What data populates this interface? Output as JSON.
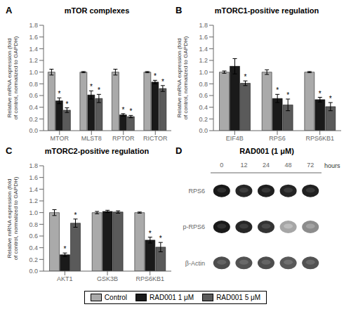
{
  "chart_data": [
    {
      "type": "bar",
      "title": "mTOR complexes",
      "annotations": [
        "A"
      ],
      "categories": [
        "MTOR",
        "MLST8",
        "RPTOR",
        "RICTOR"
      ],
      "ylabel": "Relative mRNA expression (fold\nof control, normalized to GAPDH)",
      "series": [
        {
          "name": "Control",
          "color": "#aaaaaa",
          "values": [
            1.0,
            1.0,
            1.0,
            1.0
          ],
          "errors": [
            0.05,
            0.01,
            0.05,
            0.01
          ]
        },
        {
          "name": "RAD001 1 μM",
          "color": "#1a1a1a",
          "values": [
            0.51,
            0.61,
            0.27,
            0.83
          ],
          "errors": [
            0.05,
            0.07,
            0.02,
            0.03
          ],
          "annotations": [
            "*",
            "*",
            "*",
            "*"
          ]
        },
        {
          "name": "RAD001 5 μM",
          "color": "#5a5a5a",
          "values": [
            0.35,
            0.55,
            0.24,
            0.72
          ],
          "errors": [
            0.04,
            0.07,
            0.02,
            0.05
          ],
          "annotations": [
            "*",
            "*",
            "*",
            "*"
          ]
        }
      ],
      "ylim": [
        0,
        1.8
      ],
      "yticks": [
        {
          "value": 0,
          "label": "0.0"
        },
        0.2,
        0.4,
        0.6,
        0.8,
        {
          "value": 1,
          "label": "1.0"
        },
        1.2,
        1.4,
        1.6,
        1.8
      ],
      "grid": false,
      "legend": "bottom"
    },
    {
      "type": "bar",
      "title": "mTORC1-positive regulation",
      "annotations": [
        "B"
      ],
      "categories": [
        "EIF4B",
        "RPS6",
        "RPS6KB1"
      ],
      "ylabel": "Relative mRNA expression (fold\nof control, normalized to GAPDH)",
      "series": [
        {
          "name": "Control",
          "color": "#aaaaaa",
          "values": [
            1.0,
            1.0,
            1.0
          ],
          "errors": [
            0.02,
            0.04,
            0.01
          ]
        },
        {
          "name": "RAD001 1 μM",
          "color": "#1a1a1a",
          "values": [
            1.1,
            0.55,
            0.53
          ],
          "errors": [
            0.13,
            0.07,
            0.04
          ],
          "annotations": [
            null,
            "*",
            "*"
          ]
        },
        {
          "name": "RAD001 5 μM",
          "color": "#5a5a5a",
          "values": [
            0.81,
            0.44,
            0.41
          ],
          "errors": [
            0.04,
            0.1,
            0.07
          ],
          "annotations": [
            "*",
            "*",
            "*"
          ]
        }
      ],
      "ylim": [
        0,
        1.8
      ],
      "yticks": [
        {
          "value": 0,
          "label": "0.0"
        },
        0.2,
        0.4,
        0.6,
        0.8,
        {
          "value": 1,
          "label": "1.0"
        },
        1.2,
        1.4,
        1.6,
        1.8
      ],
      "grid": false
    },
    {
      "type": "bar",
      "title": "mTORC2-positive regulation",
      "annotations": [
        "C"
      ],
      "categories": [
        "AKT1",
        "GSK3B",
        "RPS6KB1"
      ],
      "ylabel": "Relative mRNA expression (fold\nof control, normalized to GAPDH)",
      "series": [
        {
          "name": "Control",
          "color": "#aaaaaa",
          "values": [
            1.0,
            1.0,
            1.0
          ],
          "errors": [
            0.05,
            0.02,
            0.01
          ]
        },
        {
          "name": "RAD001 1 μM",
          "color": "#1a1a1a",
          "values": [
            0.28,
            1.02,
            0.53
          ],
          "errors": [
            0.03,
            0.02,
            0.05
          ],
          "annotations": [
            "*",
            null,
            "*"
          ]
        },
        {
          "name": "RAD001 5 μM",
          "color": "#5a5a5a",
          "values": [
            0.82,
            1.01,
            0.41
          ],
          "errors": [
            0.07,
            0.02,
            0.08
          ],
          "annotations": [
            "*",
            null,
            "*"
          ]
        }
      ],
      "ylim": [
        0,
        1.8
      ],
      "yticks": [
        {
          "value": 0,
          "label": "0.0"
        },
        0.2,
        0.4,
        0.6,
        0.8,
        {
          "value": 1,
          "label": "1.0"
        },
        1.2,
        1.4,
        1.6,
        1.8
      ],
      "grid": false
    },
    {
      "type": "heatmap",
      "title": "RAD001 (1 μM)",
      "annotations": [
        "D"
      ],
      "categories": [
        "0",
        "12",
        "24",
        "48",
        "72"
      ],
      "xlabel": "hours",
      "y_categories": [
        "RPS6",
        "p-RPS6",
        "β-Actin"
      ],
      "cells": [
        [
          0.9,
          0.85,
          0.88,
          0.86,
          0.87
        ],
        [
          0.9,
          0.85,
          0.8,
          0.35,
          0.45
        ],
        [
          0.7,
          0.68,
          0.7,
          0.65,
          0.68
        ]
      ]
    }
  ]
}
